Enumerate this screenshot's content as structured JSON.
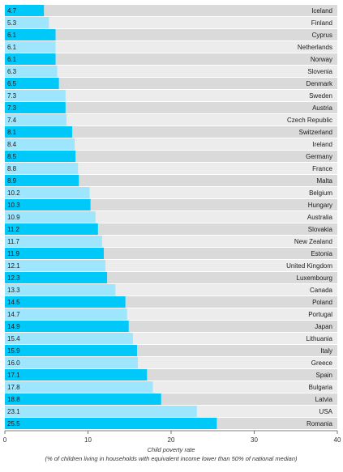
{
  "chart_data": {
    "type": "bar",
    "orientation": "horizontal",
    "categories": [
      "Iceland",
      "Finland",
      "Cyprus",
      "Netherlands",
      "Norway",
      "Slovenia",
      "Denmark",
      "Sweden",
      "Austria",
      "Czech Republic",
      "Switzerland",
      "Ireland",
      "Germany",
      "France",
      "Malta",
      "Belgium",
      "Hungary",
      "Australia",
      "Slovakia",
      "New Zealand",
      "Estonia",
      "United Kingdom",
      "Luxembourg",
      "Canada",
      "Poland",
      "Portugal",
      "Japan",
      "Lithuania",
      "Italy",
      "Greece",
      "Spain",
      "Bulgaria",
      "Latvia",
      "USA",
      "Romania"
    ],
    "values": [
      4.7,
      5.3,
      6.1,
      6.1,
      6.1,
      6.3,
      6.5,
      7.3,
      7.3,
      7.4,
      8.1,
      8.4,
      8.5,
      8.8,
      8.9,
      10.2,
      10.3,
      10.9,
      11.2,
      11.7,
      11.9,
      12.1,
      12.3,
      13.3,
      14.5,
      14.7,
      14.9,
      15.4,
      15.9,
      16.0,
      17.1,
      17.8,
      18.8,
      23.1,
      25.5
    ],
    "value_labels": [
      "4.7",
      "5.3",
      "6.1",
      "6.1",
      "6.1",
      "6.3",
      "6.5",
      "7.3",
      "7.3",
      "7.4",
      "8.1",
      "8.4",
      "8.5",
      "8.8",
      "8.9",
      "10.2",
      "10.3",
      "10.9",
      "11.2",
      "11.7",
      "11.9",
      "12.1",
      "12.3",
      "13.3",
      "14.5",
      "14.7",
      "14.9",
      "15.4",
      "15.9",
      "16.0",
      "17.1",
      "17.8",
      "18.8",
      "23.1",
      "25.5"
    ],
    "xlim": [
      0,
      40
    ],
    "xticks": [
      "0",
      "10",
      "20",
      "30",
      "40"
    ],
    "xlabel": "Child poverty rate",
    "xlabel_sub": "(% of children living in households with equivalent income lower than 50% of national median)",
    "title": "",
    "grid": false,
    "colors": {
      "bar_even": "#00c8f8",
      "bar_odd": "#9ee6fd",
      "track_even": "#dadada",
      "track_odd": "#ececec",
      "axis": "#555555"
    }
  }
}
